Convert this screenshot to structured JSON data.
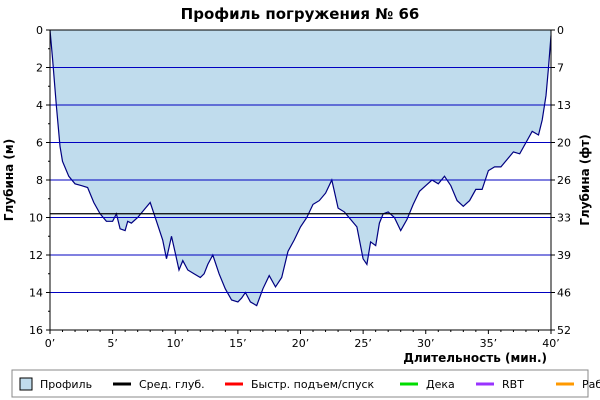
{
  "chart_data": {
    "type": "area",
    "title": "Профиль погружения № 66",
    "xlabel": "Длительность (мин.)",
    "ylabel": "Глубина (м)",
    "y2label": "Глубина (фт)",
    "xlim": [
      0,
      40
    ],
    "ylim": [
      16,
      0
    ],
    "y2lim": [
      52,
      0
    ],
    "x_ticks": [
      "0’",
      "5’",
      "10’",
      "15’",
      "20’",
      "25’",
      "30’",
      "35’",
      "40’"
    ],
    "y_ticks": [
      "0",
      "2",
      "4",
      "6",
      "8",
      "10",
      "12",
      "14",
      "16"
    ],
    "y2_ticks": [
      "0",
      "7",
      "13",
      "20",
      "26",
      "33",
      "39",
      "46",
      "52"
    ],
    "average_depth": 9.8,
    "grid": true,
    "legend_position": "bottom",
    "colors": {
      "profile_fill": "#c0dced",
      "profile_line": "#000080",
      "average": "#000000",
      "fast_ascent": "#ff0000",
      "deco": "#00dd00",
      "rbt": "#9933ff",
      "work": "#ff9900",
      "grid": "#0000c0"
    },
    "series": [
      {
        "name": "Профиль",
        "x": [
          0,
          0.2,
          0.5,
          0.8,
          1,
          1.5,
          2,
          2.5,
          3,
          3.5,
          4,
          4.5,
          5,
          5.3,
          5.6,
          6,
          6.2,
          6.5,
          7,
          7.5,
          8,
          8.5,
          9,
          9.3,
          9.7,
          10,
          10.3,
          10.6,
          11,
          11.5,
          12,
          12.3,
          12.6,
          13,
          13.5,
          14,
          14.5,
          15,
          15.3,
          15.6,
          16,
          16.5,
          17,
          17.5,
          18,
          18.5,
          19,
          19.5,
          20,
          20.5,
          21,
          21.5,
          22,
          22.5,
          22.8,
          23,
          23.5,
          24,
          24.5,
          25,
          25.3,
          25.6,
          26,
          26.3,
          26.6,
          27,
          27.5,
          28,
          28.5,
          29,
          29.5,
          30,
          30.5,
          31,
          31.5,
          32,
          32.5,
          33,
          33.5,
          34,
          34.5,
          35,
          35.5,
          36,
          36.5,
          37,
          37.5,
          38,
          38.5,
          39,
          39.3,
          39.6,
          39.8,
          40
        ],
        "y": [
          0,
          1.5,
          4,
          6.2,
          7,
          7.8,
          8.2,
          8.3,
          8.4,
          9.2,
          9.8,
          10.2,
          10.2,
          9.8,
          10.6,
          10.7,
          10.2,
          10.3,
          10,
          9.6,
          9.2,
          10.2,
          11.2,
          12.2,
          11,
          11.9,
          12.8,
          12.3,
          12.8,
          13.0,
          13.2,
          13.0,
          12.5,
          12.0,
          13.0,
          13.8,
          14.4,
          14.5,
          14.3,
          14.0,
          14.5,
          14.7,
          13.8,
          13.1,
          13.7,
          13.2,
          11.8,
          11.2,
          10.5,
          10.0,
          9.3,
          9.1,
          8.7,
          8.0,
          8.9,
          9.5,
          9.7,
          10.1,
          10.5,
          12.2,
          12.5,
          11.3,
          11.5,
          10.3,
          9.8,
          9.7,
          10.0,
          10.7,
          10.1,
          9.3,
          8.6,
          8.3,
          8.0,
          8.2,
          7.8,
          8.3,
          9.1,
          9.4,
          9.1,
          8.5,
          8.5,
          7.5,
          7.3,
          7.3,
          6.9,
          6.5,
          6.6,
          6.0,
          5.4,
          5.6,
          4.8,
          3.5,
          2.0,
          0.3
        ]
      }
    ]
  },
  "legend": {
    "items": [
      {
        "label": "Профиль",
        "color": "#c0dced",
        "kind": "box"
      },
      {
        "label": "Сред. глуб.",
        "color": "#000000",
        "kind": "line"
      },
      {
        "label": "Быстр. подъем/спуск",
        "color": "#ff0000",
        "kind": "line"
      },
      {
        "label": "Дека",
        "color": "#00dd00",
        "kind": "line"
      },
      {
        "label": "RBT",
        "color": "#9933ff",
        "kind": "line"
      },
      {
        "label": "Раб.",
        "color": "#ff9900",
        "kind": "line"
      }
    ]
  }
}
